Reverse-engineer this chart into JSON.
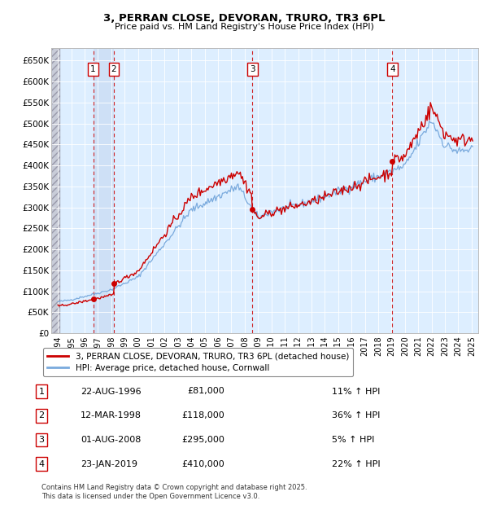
{
  "title": "3, PERRAN CLOSE, DEVORAN, TRURO, TR3 6PL",
  "subtitle": "Price paid vs. HM Land Registry's House Price Index (HPI)",
  "transactions": [
    {
      "label": "1",
      "date_str": "22-AUG-1996",
      "date_x": 1996.64,
      "price": 81000,
      "pct": "11%",
      "dir": "↑"
    },
    {
      "label": "2",
      "date_str": "12-MAR-1998",
      "date_x": 1998.19,
      "price": 118000,
      "pct": "36%",
      "dir": "↑"
    },
    {
      "label": "3",
      "date_str": "01-AUG-2008",
      "date_x": 2008.58,
      "price": 295000,
      "pct": "5%",
      "dir": "↑"
    },
    {
      "label": "4",
      "date_str": "23-JAN-2019",
      "date_x": 2019.06,
      "price": 410000,
      "pct": "22%",
      "dir": "↑"
    }
  ],
  "xlim": [
    1993.5,
    2025.5
  ],
  "ylim": [
    0,
    680000
  ],
  "yticks": [
    0,
    50000,
    100000,
    150000,
    200000,
    250000,
    300000,
    350000,
    400000,
    450000,
    500000,
    550000,
    600000,
    650000
  ],
  "ytick_labels": [
    "£0",
    "£50K",
    "£100K",
    "£150K",
    "£200K",
    "£250K",
    "£300K",
    "£350K",
    "£400K",
    "£450K",
    "£500K",
    "£550K",
    "£600K",
    "£650K"
  ],
  "xticks": [
    1994,
    1995,
    1996,
    1997,
    1998,
    1999,
    2000,
    2001,
    2002,
    2003,
    2004,
    2005,
    2006,
    2007,
    2008,
    2009,
    2010,
    2011,
    2012,
    2013,
    2014,
    2015,
    2016,
    2017,
    2018,
    2019,
    2020,
    2021,
    2022,
    2023,
    2024,
    2025
  ],
  "hpi_color": "#7aaadd",
  "price_color": "#cc0000",
  "dashed_color": "#cc0000",
  "background_plot": "#ddeeff",
  "legend_label_red": "3, PERRAN CLOSE, DEVORAN, TRURO, TR3 6PL (detached house)",
  "legend_label_blue": "HPI: Average price, detached house, Cornwall",
  "footer": "Contains HM Land Registry data © Crown copyright and database right 2025.\nThis data is licensed under the Open Government Licence v3.0.",
  "highlight_color": "#ccddf5"
}
